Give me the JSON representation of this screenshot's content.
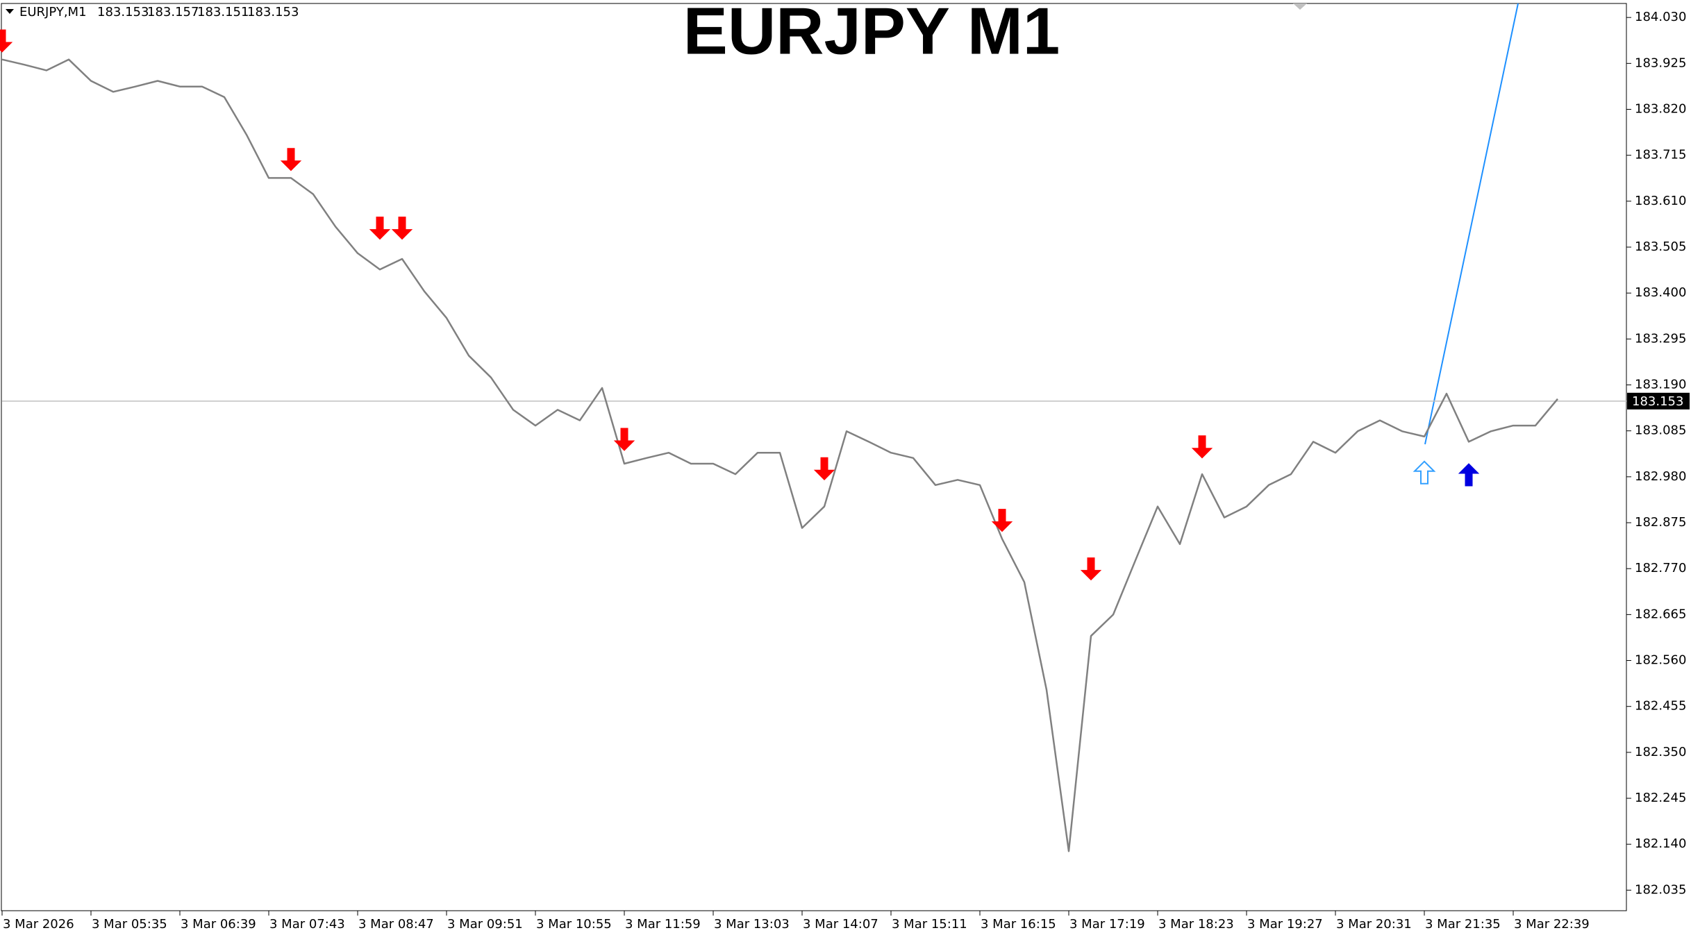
{
  "chart_data": {
    "type": "line",
    "title": "EURJPY M1",
    "header": {
      "symbol": "EURJPY,M1",
      "ohlc": [
        183.153,
        183.157,
        183.151,
        183.153
      ]
    },
    "categories": [
      "3 Mar 2026",
      null,
      null,
      null,
      "3 Mar 05:35",
      null,
      null,
      null,
      "3 Mar 06:39",
      null,
      null,
      null,
      "3 Mar 07:43",
      null,
      null,
      null,
      "3 Mar 08:47",
      null,
      null,
      null,
      "3 Mar 09:51",
      null,
      null,
      null,
      "3 Mar 10:55",
      null,
      null,
      null,
      "3 Mar 11:59",
      null,
      null,
      null,
      "3 Mar 13:03",
      null,
      null,
      null,
      "3 Mar 14:07",
      null,
      null,
      null,
      "3 Mar 15:11",
      null,
      null,
      null,
      "3 Mar 16:15",
      null,
      null,
      null,
      "3 Mar 17:19",
      null,
      null,
      null,
      "3 Mar 18:23",
      null,
      null,
      null,
      "3 Mar 19:27",
      null,
      null,
      null,
      "3 Mar 20:31",
      null,
      null,
      null,
      "3 Mar 21:35",
      null,
      null,
      null,
      "3 Mar 22:39",
      null,
      null
    ],
    "series": [
      {
        "color": "#808080",
        "values": [
          183.934,
          183.922,
          183.909,
          183.934,
          183.885,
          183.86,
          183.872,
          183.885,
          183.872,
          183.872,
          183.848,
          183.762,
          183.663,
          183.663,
          183.626,
          183.552,
          183.491,
          183.454,
          183.478,
          183.404,
          183.343,
          183.257,
          183.207,
          183.133,
          183.097,
          183.133,
          183.109,
          183.183,
          183.01,
          183.023,
          183.035,
          183.01,
          183.01,
          182.986,
          183.035,
          183.035,
          182.863,
          182.912,
          183.084,
          183.06,
          183.035,
          183.023,
          182.961,
          182.973,
          182.961,
          182.838,
          182.739,
          182.493,
          182.124,
          182.616,
          182.665,
          182.789,
          182.912,
          182.826,
          182.986,
          182.887,
          182.912,
          182.961,
          182.986,
          183.06,
          183.035,
          183.084,
          183.109,
          183.084,
          183.072,
          183.17,
          183.06,
          183.084,
          183.097,
          183.097,
          183.158
        ]
      },
      {
        "color": "#ff0000",
        "marker": "arrow-down",
        "hollow": false,
        "values": [
          183.951,
          null,
          null,
          null,
          null,
          null,
          null,
          null,
          null,
          null,
          null,
          null,
          null,
          183.68,
          null,
          null,
          null,
          183.523,
          183.523,
          null,
          null,
          null,
          null,
          null,
          null,
          null,
          null,
          null,
          183.04,
          null,
          null,
          null,
          null,
          null,
          null,
          null,
          null,
          182.973,
          null,
          null,
          null,
          null,
          null,
          null,
          null,
          182.855,
          null,
          null,
          null,
          182.744,
          null,
          null,
          null,
          null,
          183.023,
          null,
          null,
          null,
          null,
          null,
          null,
          null,
          null,
          null,
          null,
          null,
          null,
          null,
          null,
          null,
          null
        ]
      },
      {
        "color": "#33a0ff",
        "marker": "arrow-up",
        "hollow": true,
        "values": [
          null,
          null,
          null,
          null,
          null,
          null,
          null,
          null,
          null,
          null,
          null,
          null,
          null,
          null,
          null,
          null,
          null,
          null,
          null,
          null,
          null,
          null,
          null,
          null,
          null,
          null,
          null,
          null,
          null,
          null,
          null,
          null,
          null,
          null,
          null,
          null,
          null,
          null,
          null,
          null,
          null,
          null,
          null,
          null,
          null,
          null,
          null,
          null,
          null,
          null,
          null,
          null,
          null,
          null,
          null,
          null,
          null,
          null,
          null,
          null,
          null,
          null,
          null,
          null,
          183.015,
          null,
          null,
          null,
          null,
          null,
          null
        ]
      },
      {
        "color": "#0000e0",
        "marker": "arrow-up",
        "hollow": false,
        "values": [
          null,
          null,
          null,
          null,
          null,
          null,
          null,
          null,
          null,
          null,
          null,
          null,
          null,
          null,
          null,
          null,
          null,
          null,
          null,
          null,
          null,
          null,
          null,
          null,
          null,
          null,
          null,
          null,
          null,
          null,
          null,
          null,
          null,
          null,
          null,
          null,
          null,
          null,
          null,
          null,
          null,
          null,
          null,
          null,
          null,
          null,
          null,
          null,
          null,
          null,
          null,
          null,
          null,
          null,
          null,
          null,
          null,
          null,
          null,
          null,
          null,
          null,
          null,
          null,
          null,
          null,
          183.01,
          null,
          null,
          null,
          null
        ]
      }
    ],
    "last_price": 183.153,
    "ylim": [
      181.988,
      184.062
    ],
    "yticks": [
      {
        "value": 184.03,
        "label": "184.030"
      },
      183.925,
      {
        "value": 183.82,
        "label": "183.820"
      },
      183.715,
      {
        "value": 183.61,
        "label": "183.610"
      },
      183.505,
      {
        "value": 183.4,
        "label": "183.400"
      },
      183.295,
      {
        "value": 183.19,
        "label": "183.190"
      },
      183.085,
      {
        "value": 182.98,
        "label": "182.980"
      },
      182.875,
      {
        "value": 182.77,
        "label": "182.770"
      },
      182.665,
      {
        "value": 182.56,
        "label": "182.560"
      },
      182.455,
      {
        "value": 182.35,
        "label": "182.350"
      },
      182.245,
      {
        "value": 182.14,
        "label": "182.140"
      },
      182.035
    ],
    "grid": false
  }
}
